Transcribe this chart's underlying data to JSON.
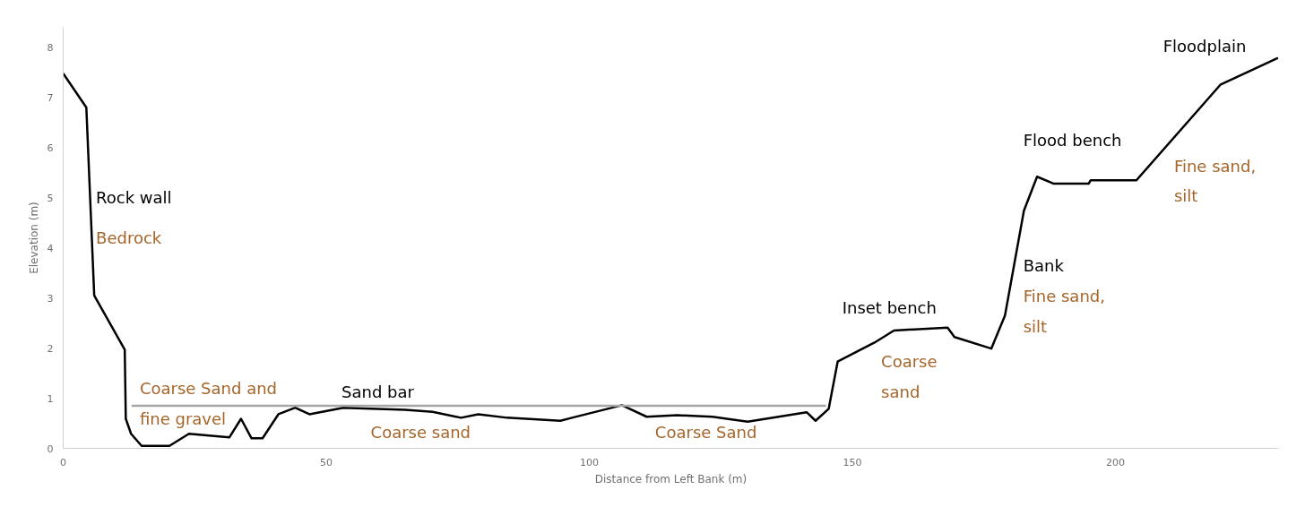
{
  "chart_data": {
    "type": "line",
    "xlabel": "Distance from Left Bank (m)",
    "ylabel": "Elevation (m)",
    "series": [
      {
        "color": "#000000",
        "x": [
          0,
          4.4,
          5.9,
          11.7,
          11.9,
          12.9,
          14.9,
          20.2,
          23.9,
          31.6,
          33.8,
          35.8,
          37.9,
          40.9,
          44.1,
          46.8,
          53.2,
          65,
          70.2,
          75.6,
          78.9,
          84.4,
          94.5,
          96.7,
          106.2,
          110.9,
          116.7,
          123.4,
          130.1,
          141.3,
          143,
          145.5,
          147.2,
          154.2,
          157.9,
          168.1,
          169.4,
          176.4,
          179,
          182.6,
          185.1,
          188.3,
          194.9,
          195.3,
          204,
          220,
          230.9
        ],
        "values": [
          7.48,
          6.8,
          3.05,
          1.97,
          0.59,
          0.29,
          0.05,
          0.05,
          0.29,
          0.22,
          0.59,
          0.2,
          0.2,
          0.68,
          0.81,
          0.68,
          0.81,
          0.77,
          0.73,
          0.61,
          0.68,
          0.61,
          0.55,
          0.61,
          0.86,
          0.63,
          0.66,
          0.63,
          0.53,
          0.72,
          0.55,
          0.79,
          1.73,
          2.11,
          2.35,
          2.41,
          2.22,
          1.99,
          2.65,
          4.74,
          5.42,
          5.28,
          5.28,
          5.35,
          5.35,
          7.26,
          7.79
        ]
      },
      {
        "color": "#a6a6a6",
        "x": [
          13,
          145
        ],
        "values": [
          0.85,
          0.85
        ]
      }
    ],
    "xlim": [
      0,
      231
    ],
    "ylim": [
      0,
      8.4
    ],
    "xticks": [
      0,
      50,
      100,
      150,
      200
    ],
    "yticks": [
      0,
      1,
      2,
      3,
      4,
      5,
      6,
      7,
      8
    ],
    "grid": false,
    "marker": "none",
    "line_style": "solid",
    "annotations": [
      "Rock wall",
      "Bedrock",
      "Coarse Sand and\nfine gravel",
      "Sand bar",
      "Coarse sand",
      "Coarse Sand",
      "Inset bench",
      "Coarse\nsand",
      "Flood bench",
      "Bank",
      "Fine sand,\nsilt",
      "Fine sand,\nsilt",
      "Floodplain"
    ]
  }
}
